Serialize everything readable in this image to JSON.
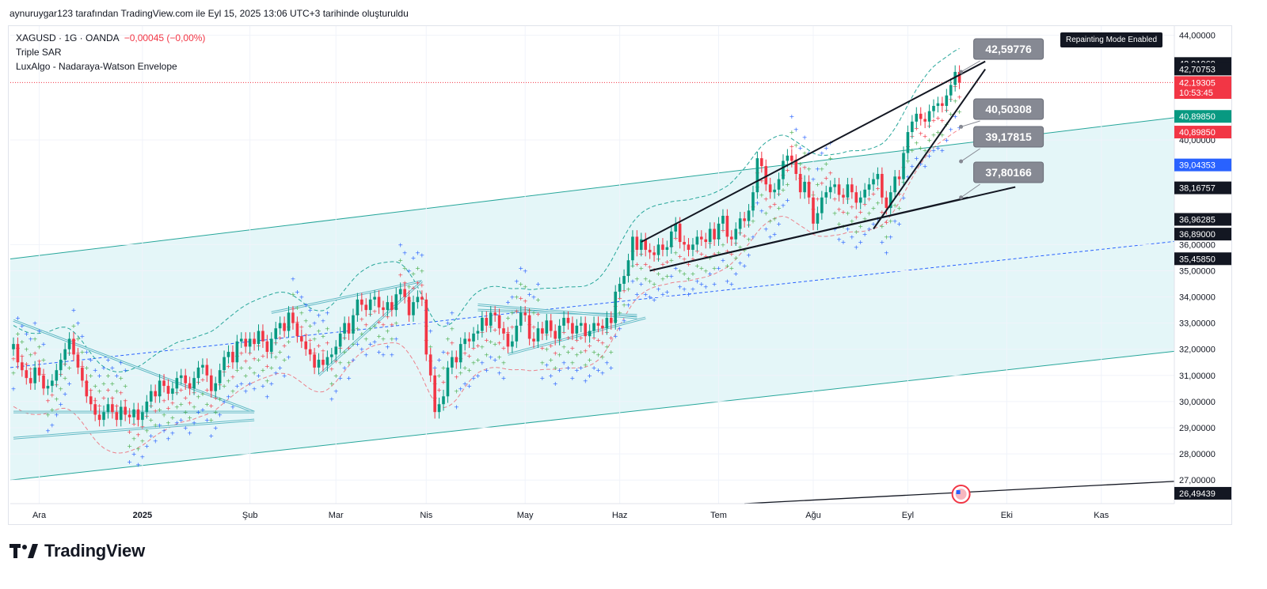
{
  "header": {
    "caption": "aynuruygar123 tarafından TradingView.com ile Eyl 15, 2025 13:06 UTC+3 tarihinde oluşturuldu"
  },
  "legend": {
    "symbol_line": "XAGUSD · 1G · OANDA",
    "change": "−0,00045 (−0,00%)",
    "indicator_1": "Triple SAR",
    "indicator_2": "LuxAlgo - Nadaraya-Watson Envelope"
  },
  "badge": {
    "text": "Repainting Mode Enabled"
  },
  "footer": {
    "brand": "TradingView"
  },
  "colors": {
    "bull": "#089981",
    "bear": "#f23645",
    "channel_fill": "#e4f6f8",
    "channel_line": "#26a69a",
    "sar_red": "#f23645",
    "sar_green": "#4caf50",
    "sar_blue": "#2962ff",
    "envelope": "#26a69a",
    "callout_bg": "#868993",
    "pattern_line": "#5db8c4"
  },
  "chart_data": {
    "type": "candlestick",
    "symbol": "XAGUSD",
    "timeframe": "1G",
    "ylim": [
      26.1,
      44.35
    ],
    "x_tick_labels": [
      "Ara",
      "2025",
      "Şub",
      "Mar",
      "Nis",
      "May",
      "Haz",
      "Tem",
      "Ağu",
      "Eyl",
      "Eki",
      "Kas"
    ],
    "x_tick_index": [
      6,
      30,
      55,
      75,
      96,
      119,
      141,
      164,
      186,
      208,
      231,
      253
    ],
    "y_ticks": [
      27,
      28,
      29,
      30,
      31,
      32,
      33,
      34,
      35,
      36,
      40,
      44
    ],
    "y_tick_labels": [
      "27,00000",
      "28,00000",
      "29,00000",
      "30,00000",
      "31,00000",
      "32,00000",
      "33,00000",
      "34,00000",
      "35,00000",
      "36,00000",
      "40,00000",
      "44,00000"
    ],
    "closes": [
      32.2,
      31.5,
      31.2,
      30.9,
      30.7,
      31.3,
      31.0,
      30.5,
      30.6,
      30.8,
      31.2,
      31.6,
      32.0,
      32.4,
      31.8,
      31.3,
      30.8,
      30.2,
      29.9,
      29.5,
      29.3,
      29.6,
      29.9,
      29.6,
      29.3,
      29.8,
      29.5,
      29.4,
      29.7,
      29.3,
      29.6,
      30.0,
      30.4,
      30.2,
      30.8,
      30.6,
      30.3,
      30.5,
      30.9,
      31.0,
      30.7,
      30.5,
      30.9,
      31.3,
      31.4,
      31.0,
      30.4,
      30.7,
      31.2,
      31.7,
      31.9,
      31.5,
      32.3,
      32.4,
      32.1,
      32.4,
      32.2,
      32.7,
      32.3,
      31.9,
      32.4,
      32.8,
      33.0,
      32.7,
      33.4,
      33.0,
      32.5,
      32.3,
      32.0,
      31.8,
      31.3,
      31.6,
      31.4,
      31.7,
      31.8,
      32.1,
      32.6,
      33.0,
      32.6,
      33.3,
      33.9,
      33.7,
      33.5,
      33.9,
      34.0,
      33.6,
      33.5,
      33.8,
      33.5,
      34.1,
      34.3,
      34.0,
      33.3,
      33.8,
      34.0,
      33.9,
      31.8,
      31.0,
      29.6,
      29.9,
      30.2,
      31.3,
      31.7,
      31.5,
      32.2,
      32.4,
      32.3,
      32.6,
      32.7,
      33.2,
      32.9,
      33.4,
      33.3,
      32.8,
      32.6,
      32.1,
      32.3,
      32.9,
      33.4,
      33.3,
      32.4,
      32.3,
      32.8,
      32.6,
      33.1,
      32.7,
      32.4,
      32.9,
      33.2,
      33.0,
      32.6,
      32.9,
      33.0,
      32.5,
      32.7,
      33.0,
      32.9,
      32.8,
      33.2,
      33.0,
      34.2,
      34.5,
      34.8,
      35.4,
      36.3,
      35.8,
      36.2,
      35.8,
      35.7,
      35.6,
      36.0,
      35.8,
      35.9,
      36.5,
      36.8,
      36.1,
      36.0,
      35.8,
      36.0,
      36.3,
      36.2,
      36.1,
      36.6,
      36.2,
      36.8,
      37.1,
      36.3,
      36.2,
      36.6,
      37.0,
      36.9,
      37.3,
      38.0,
      39.3,
      39.0,
      38.3,
      38.0,
      38.1,
      38.5,
      39.2,
      39.4,
      39.2,
      38.7,
      38.0,
      38.4,
      37.8,
      36.8,
      37.2,
      37.8,
      38.0,
      38.2,
      38.3,
      37.9,
      37.8,
      38.3,
      38.0,
      37.6,
      37.8,
      38.1,
      38.3,
      38.5,
      38.7,
      37.8,
      37.4,
      38.0,
      38.6,
      38.5,
      39.5,
      40.3,
      40.7,
      41.0,
      40.8,
      40.7,
      41.1,
      41.3,
      41.4,
      41.3,
      41.7,
      42.1,
      42.6,
      42.19
    ],
    "last_price": 42.19305,
    "regression_channel": {
      "start_upper": 35.45,
      "start_lower": 27.0,
      "end_upper": 40.85,
      "end_lower": 31.92,
      "mid_start": 31.3,
      "mid_end": 36.12
    },
    "price_labels": [
      {
        "label": "42,91969",
        "value": 42.91969,
        "style": "dark"
      },
      {
        "label": "42,70753",
        "value": 42.70753,
        "style": "dark"
      },
      {
        "label": "42,19305",
        "value": 42.19305,
        "style": "red"
      },
      {
        "label": "10:53:45",
        "value": 41.81,
        "style": "red"
      },
      {
        "label": "40,89850",
        "value": 40.8985,
        "style": "green"
      },
      {
        "label": "40,89850",
        "value": 40.3,
        "style": "red"
      },
      {
        "label": "39,04353",
        "value": 39.04353,
        "style": "blue"
      },
      {
        "label": "38,16757",
        "value": 38.16757,
        "style": "dark"
      },
      {
        "label": "36,96285",
        "value": 36.96285,
        "style": "dark"
      },
      {
        "label": "36,89000",
        "value": 36.4,
        "style": "dark"
      },
      {
        "label": "35,45850",
        "value": 35.4585,
        "style": "dark"
      },
      {
        "label": "26,49439",
        "value": 26.49439,
        "style": "dark"
      }
    ],
    "callouts": [
      {
        "label": "42,59776",
        "value": 42.59776
      },
      {
        "label": "40,50308",
        "value": 40.50308
      },
      {
        "label": "39,17815",
        "value": 39.17815
      },
      {
        "label": "37,80166",
        "value": 37.80166
      }
    ]
  }
}
